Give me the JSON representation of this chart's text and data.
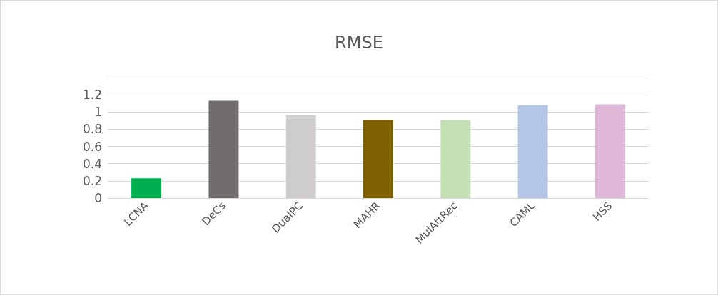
{
  "chart_data": {
    "type": "bar",
    "title": "RMSE",
    "categories": [
      "LCNA",
      "DeCs",
      "DualPC",
      "MAHR",
      "MulAttRec",
      "CAML",
      "HSS"
    ],
    "values": [
      0.23,
      1.13,
      0.96,
      0.91,
      0.91,
      1.08,
      1.09
    ],
    "colors": [
      "#00b050",
      "#716d6d",
      "#d0cece",
      "#7f6000",
      "#c5e0b4",
      "#b4c7e7",
      "#e0b8d8"
    ],
    "ylim": [
      0,
      1.4
    ],
    "yticks": [
      0,
      0.2,
      0.4,
      0.6,
      0.8,
      1,
      1.2,
      {
        "value": 1.4,
        "label": null
      }
    ],
    "grid": "y"
  }
}
